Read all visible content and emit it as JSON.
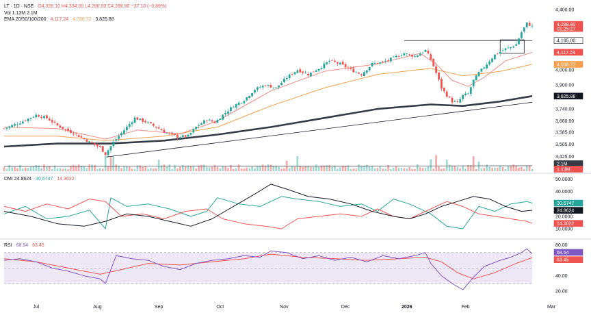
{
  "legend": {
    "symbol": "LT · 1D · NSE",
    "ohlc": "O4,326.10  H4,334.00  L4,286.00  C4,288.80  −37.10 (−0.86%)",
    "volume": "Vol  1.13M  2.1M",
    "ema": "EMA 20/50/100/200",
    "ema_20": "4,117.24",
    "ema_50": "4,036.72",
    "ema_200": "3,825.88",
    "dmi": "DMI  24.8624",
    "dmi_plus": "30.6747",
    "dmi_minus": "14.3022",
    "rsi": "RSI",
    "rsi_value": "68.54",
    "rsi_ma": "63.45"
  },
  "colors": {
    "up": "#26a69a",
    "down": "#ef5350",
    "ema20": "#f28b82",
    "ema50": "#f6a04d",
    "ema200": "#363a45",
    "dmi_plus": "#26a69a",
    "dmi_minus": "#ef5350",
    "adx": "#131722",
    "rsi": "#7e57c2",
    "rsi_ma": "#ef5350",
    "rsi_band": "#ede7f6"
  },
  "chart_data": {
    "type": "candlestick",
    "x_ticks": [
      "Jul",
      "Aug",
      "Sep",
      "Oct",
      "Nov",
      "Dec",
      "2026",
      "Feb",
      "Mar"
    ],
    "price_axis": {
      "ticks": [
        "4,400.00",
        "4,195.00",
        "4,000.00",
        "3,900.00",
        "3,740.00",
        "3,660.00",
        "3,585.00",
        "3,505.00",
        "3,425.00"
      ],
      "range": [
        3390,
        4410
      ],
      "horizontal_level": 4195
    },
    "price_badges": [
      {
        "value": "4,288.80",
        "sub": "01:25:27",
        "color": "#ef5350"
      },
      {
        "value": "4,195.00",
        "color": "#ffffff"
      },
      {
        "value": "4,117.24",
        "color": "#ef5350"
      },
      {
        "value": "4,036.72",
        "color": "#f6a04d"
      },
      {
        "value": "3,825.88",
        "color": "#131722"
      }
    ],
    "volume_badges": [
      {
        "value": "2.1M",
        "color": "#363a45"
      },
      {
        "value": "1.13M",
        "color": "#ef5350"
      }
    ],
    "dmi_axis": {
      "ticks": [
        "50.0000",
        "40.0000",
        "20.0000",
        "10.0000"
      ],
      "range": [
        5,
        52
      ]
    },
    "dmi_badges": [
      {
        "value": "30.6747",
        "color": "#26a69a"
      },
      {
        "value": "24.8624",
        "color": "#131722"
      },
      {
        "value": "14.3022",
        "color": "#ef5350"
      }
    ],
    "rsi_axis": {
      "ticks": [
        "80.00",
        "40.00",
        "20.00"
      ],
      "range": [
        14,
        84
      ],
      "band": [
        30,
        70
      ]
    },
    "rsi_badges": [
      {
        "value": "68.54",
        "color": "#7e57c2"
      },
      {
        "value": "63.45",
        "color": "#ef5350"
      }
    ],
    "price_path": [
      [
        0,
        3610
      ],
      [
        6,
        3650
      ],
      [
        12,
        3700
      ],
      [
        16,
        3680
      ],
      [
        20,
        3630
      ],
      [
        26,
        3580
      ],
      [
        32,
        3520
      ],
      [
        36,
        3485
      ],
      [
        38,
        3440
      ],
      [
        41,
        3520
      ],
      [
        45,
        3600
      ],
      [
        49,
        3680
      ],
      [
        53,
        3655
      ],
      [
        57,
        3620
      ],
      [
        61,
        3580
      ],
      [
        65,
        3555
      ],
      [
        69,
        3560
      ],
      [
        72,
        3620
      ],
      [
        76,
        3670
      ],
      [
        79,
        3650
      ],
      [
        82,
        3700
      ],
      [
        86,
        3760
      ],
      [
        90,
        3800
      ],
      [
        94,
        3870
      ],
      [
        98,
        3900
      ],
      [
        102,
        3880
      ],
      [
        106,
        3950
      ],
      [
        110,
        4000
      ],
      [
        114,
        3970
      ],
      [
        118,
        4010
      ],
      [
        122,
        4060
      ],
      [
        126,
        4040
      ],
      [
        130,
        4000
      ],
      [
        134,
        3970
      ],
      [
        138,
        4040
      ],
      [
        142,
        4050
      ],
      [
        146,
        4080
      ],
      [
        150,
        4110
      ],
      [
        154,
        4090
      ],
      [
        158,
        4130
      ],
      [
        160,
        4070
      ],
      [
        162,
        3980
      ],
      [
        164,
        3880
      ],
      [
        166,
        3830
      ],
      [
        168,
        3790
      ],
      [
        170,
        3780
      ],
      [
        172,
        3830
      ],
      [
        174,
        3840
      ],
      [
        176,
        3930
      ],
      [
        178,
        3980
      ],
      [
        180,
        4020
      ],
      [
        182,
        4060
      ],
      [
        184,
        4100
      ],
      [
        186,
        4120
      ],
      [
        188,
        4140
      ],
      [
        190,
        4150
      ],
      [
        192,
        4170
      ],
      [
        194,
        4250
      ],
      [
        196,
        4310
      ],
      [
        198,
        4289
      ]
    ],
    "ema20": [
      [
        0,
        3620
      ],
      [
        20,
        3610
      ],
      [
        38,
        3540
      ],
      [
        50,
        3600
      ],
      [
        66,
        3575
      ],
      [
        80,
        3660
      ],
      [
        100,
        3860
      ],
      [
        120,
        3990
      ],
      [
        140,
        4040
      ],
      [
        156,
        4110
      ],
      [
        162,
        4040
      ],
      [
        168,
        3930
      ],
      [
        174,
        3890
      ],
      [
        180,
        3950
      ],
      [
        188,
        4060
      ],
      [
        198,
        4117
      ]
    ],
    "ema50": [
      [
        0,
        3560
      ],
      [
        20,
        3560
      ],
      [
        38,
        3530
      ],
      [
        60,
        3560
      ],
      [
        80,
        3620
      ],
      [
        100,
        3760
      ],
      [
        120,
        3880
      ],
      [
        140,
        3970
      ],
      [
        160,
        4010
      ],
      [
        172,
        3960
      ],
      [
        186,
        3990
      ],
      [
        198,
        4037
      ]
    ],
    "ema200": [
      [
        0,
        3490
      ],
      [
        20,
        3510
      ],
      [
        40,
        3510
      ],
      [
        60,
        3530
      ],
      [
        80,
        3570
      ],
      [
        100,
        3620
      ],
      [
        120,
        3680
      ],
      [
        140,
        3740
      ],
      [
        160,
        3770
      ],
      [
        172,
        3760
      ],
      [
        186,
        3790
      ],
      [
        198,
        3826
      ]
    ],
    "trendline": [
      [
        38,
        3420
      ],
      [
        198,
        3785
      ]
    ],
    "dmi_plus": [
      [
        0,
        22
      ],
      [
        8,
        28
      ],
      [
        16,
        18
      ],
      [
        24,
        20
      ],
      [
        32,
        25
      ],
      [
        38,
        10
      ],
      [
        40,
        35
      ],
      [
        46,
        28
      ],
      [
        54,
        30
      ],
      [
        62,
        26
      ],
      [
        70,
        20
      ],
      [
        76,
        24
      ],
      [
        80,
        35
      ],
      [
        88,
        30
      ],
      [
        96,
        28
      ],
      [
        104,
        36
      ],
      [
        110,
        34
      ],
      [
        118,
        32
      ],
      [
        126,
        28
      ],
      [
        134,
        30
      ],
      [
        140,
        24
      ],
      [
        146,
        34
      ],
      [
        152,
        30
      ],
      [
        160,
        22
      ],
      [
        166,
        12
      ],
      [
        172,
        10
      ],
      [
        178,
        28
      ],
      [
        184,
        24
      ],
      [
        190,
        30
      ],
      [
        196,
        32
      ],
      [
        198,
        30.7
      ]
    ],
    "dmi_minus": [
      [
        0,
        28
      ],
      [
        8,
        24
      ],
      [
        16,
        30
      ],
      [
        24,
        26
      ],
      [
        32,
        34
      ],
      [
        38,
        32
      ],
      [
        44,
        20
      ],
      [
        52,
        22
      ],
      [
        60,
        18
      ],
      [
        68,
        24
      ],
      [
        76,
        26
      ],
      [
        82,
        18
      ],
      [
        90,
        14
      ],
      [
        98,
        12
      ],
      [
        104,
        10
      ],
      [
        110,
        18
      ],
      [
        118,
        20
      ],
      [
        126,
        22
      ],
      [
        134,
        20
      ],
      [
        140,
        26
      ],
      [
        146,
        20
      ],
      [
        152,
        18
      ],
      [
        160,
        26
      ],
      [
        166,
        32
      ],
      [
        172,
        28
      ],
      [
        178,
        22
      ],
      [
        184,
        20
      ],
      [
        190,
        18
      ],
      [
        196,
        16
      ],
      [
        198,
        14.3
      ]
    ],
    "adx": [
      [
        0,
        24
      ],
      [
        10,
        20
      ],
      [
        20,
        14
      ],
      [
        30,
        12
      ],
      [
        38,
        16
      ],
      [
        46,
        22
      ],
      [
        54,
        20
      ],
      [
        62,
        16
      ],
      [
        70,
        12
      ],
      [
        78,
        18
      ],
      [
        86,
        28
      ],
      [
        94,
        38
      ],
      [
        100,
        46
      ],
      [
        106,
        42
      ],
      [
        114,
        36
      ],
      [
        122,
        34
      ],
      [
        130,
        30
      ],
      [
        138,
        24
      ],
      [
        146,
        20
      ],
      [
        152,
        18
      ],
      [
        158,
        22
      ],
      [
        164,
        28
      ],
      [
        170,
        32
      ],
      [
        176,
        36
      ],
      [
        182,
        34
      ],
      [
        188,
        28
      ],
      [
        194,
        24
      ],
      [
        198,
        24.9
      ]
    ],
    "rsi": [
      [
        0,
        60
      ],
      [
        6,
        62
      ],
      [
        12,
        58
      ],
      [
        18,
        50
      ],
      [
        24,
        46
      ],
      [
        30,
        40
      ],
      [
        36,
        36
      ],
      [
        38,
        30
      ],
      [
        42,
        66
      ],
      [
        48,
        62
      ],
      [
        54,
        60
      ],
      [
        60,
        52
      ],
      [
        66,
        48
      ],
      [
        72,
        56
      ],
      [
        78,
        60
      ],
      [
        84,
        62
      ],
      [
        90,
        66
      ],
      [
        96,
        64
      ],
      [
        100,
        72
      ],
      [
        106,
        70
      ],
      [
        112,
        62
      ],
      [
        118,
        66
      ],
      [
        124,
        60
      ],
      [
        130,
        64
      ],
      [
        136,
        58
      ],
      [
        142,
        66
      ],
      [
        148,
        62
      ],
      [
        154,
        66
      ],
      [
        158,
        70
      ],
      [
        160,
        56
      ],
      [
        164,
        40
      ],
      [
        168,
        30
      ],
      [
        172,
        22
      ],
      [
        176,
        38
      ],
      [
        180,
        52
      ],
      [
        186,
        60
      ],
      [
        190,
        64
      ],
      [
        194,
        70
      ],
      [
        196,
        75
      ],
      [
        198,
        68.5
      ]
    ],
    "rsi_ma": [
      [
        0,
        62
      ],
      [
        12,
        58
      ],
      [
        24,
        50
      ],
      [
        36,
        42
      ],
      [
        44,
        48
      ],
      [
        54,
        56
      ],
      [
        66,
        54
      ],
      [
        78,
        58
      ],
      [
        90,
        62
      ],
      [
        100,
        68
      ],
      [
        112,
        64
      ],
      [
        124,
        62
      ],
      [
        136,
        60
      ],
      [
        148,
        62
      ],
      [
        158,
        64
      ],
      [
        164,
        58
      ],
      [
        170,
        44
      ],
      [
        176,
        36
      ],
      [
        184,
        44
      ],
      [
        192,
        56
      ],
      [
        198,
        63.5
      ]
    ]
  }
}
